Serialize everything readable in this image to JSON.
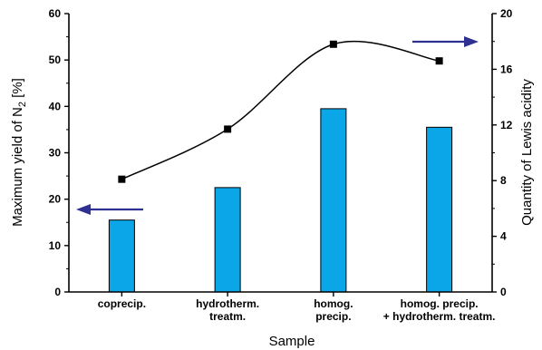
{
  "chart_data": {
    "type": "bar",
    "categories": [
      [
        "coprecip."
      ],
      [
        "hydrotherm.",
        "treatm."
      ],
      [
        "homog.",
        "precip."
      ],
      [
        "homog. precip.",
        "+ hydrotherm. treatm."
      ]
    ],
    "series": [
      {
        "type": "bar",
        "axis": "left",
        "values": [
          15.5,
          22.5,
          39.5,
          35.5
        ],
        "color": "#0aa6e8"
      },
      {
        "type": "line",
        "axis": "right",
        "values": [
          8.1,
          11.7,
          17.8,
          16.6
        ],
        "color": "#000000",
        "marker": "square"
      }
    ],
    "xlabel": "Sample",
    "ylabel_left": {
      "main": "Maximum yield of N",
      "sub": "2",
      "suffix": " [%]"
    },
    "ylabel_right": "Quantity of Lewis acidity",
    "ylim_left": [
      0,
      60
    ],
    "ylim_right": [
      0,
      20
    ],
    "yticks_left": [
      "0",
      "10",
      "20",
      "30",
      "40",
      "50",
      "60"
    ],
    "yticks_right": [
      "0",
      "4",
      "8",
      "12",
      "16",
      "20"
    ],
    "grid": false,
    "arrow_color": "#2e3192",
    "annotations": [
      {
        "type": "arrow",
        "direction": "left",
        "points_to": "left-axis"
      },
      {
        "type": "arrow",
        "direction": "right",
        "points_to": "right-axis"
      }
    ]
  }
}
